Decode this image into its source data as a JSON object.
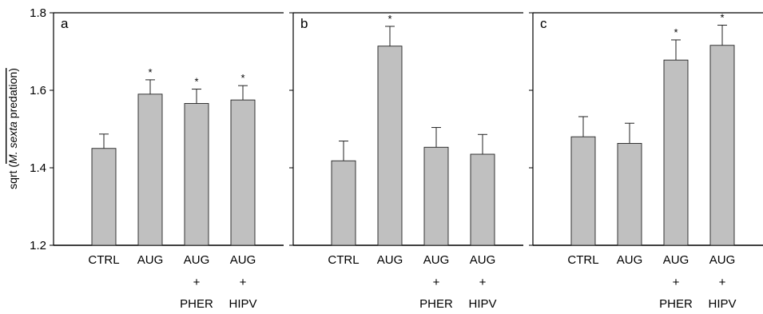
{
  "chart_data": {
    "type": "bar",
    "ylabel_prefix": "sqrt (",
    "ylabel_species": "M. sexta",
    "ylabel_suffix": " predation)",
    "ylim": [
      1.2,
      1.8
    ],
    "yticks": [
      1.2,
      1.4,
      1.6,
      1.8
    ],
    "ytick_labels": [
      "1.2",
      "1.4",
      "1.6",
      "1.8"
    ],
    "significance_marker": "*",
    "panels": [
      {
        "label": "a",
        "categories": [
          {
            "lines": [
              "CTRL"
            ]
          },
          {
            "lines": [
              "AUG"
            ]
          },
          {
            "lines": [
              "AUG",
              "+",
              "PHER"
            ]
          },
          {
            "lines": [
              "AUG",
              "+",
              "HIPV"
            ]
          }
        ],
        "values": [
          1.45,
          1.59,
          1.566,
          1.575
        ],
        "errors": [
          0.037,
          0.037,
          0.037,
          0.037
        ],
        "significant": [
          false,
          true,
          true,
          true
        ]
      },
      {
        "label": "b",
        "categories": [
          {
            "lines": [
              "CTRL"
            ]
          },
          {
            "lines": [
              "AUG"
            ]
          },
          {
            "lines": [
              "AUG",
              "+",
              "PHER"
            ]
          },
          {
            "lines": [
              "AUG",
              "+",
              "HIPV"
            ]
          }
        ],
        "values": [
          1.418,
          1.714,
          1.453,
          1.435
        ],
        "errors": [
          0.051,
          0.051,
          0.051,
          0.051
        ],
        "significant": [
          false,
          true,
          false,
          false
        ]
      },
      {
        "label": "c",
        "categories": [
          {
            "lines": [
              "CTRL"
            ]
          },
          {
            "lines": [
              "AUG"
            ]
          },
          {
            "lines": [
              "AUG",
              "+",
              "PHER"
            ]
          },
          {
            "lines": [
              "AUG",
              "+",
              "HIPV"
            ]
          }
        ],
        "values": [
          1.48,
          1.463,
          1.678,
          1.716
        ],
        "errors": [
          0.052,
          0.052,
          0.052,
          0.052
        ],
        "significant": [
          false,
          false,
          true,
          true
        ]
      }
    ]
  }
}
